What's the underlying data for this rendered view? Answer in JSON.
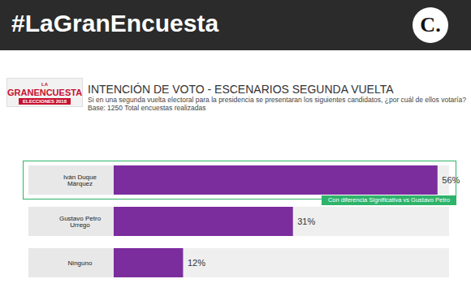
{
  "header": {
    "hashtag": "#LaGranEncuesta",
    "logo": "C."
  },
  "badge": [
    "LA",
    "GRANENCUESTA",
    "ELECCIONES 2018"
  ],
  "chart_data": {
    "type": "bar",
    "orientation": "horizontal",
    "title": "INTENCIÓN DE VOTO  - ESCENARIOS SEGUNDA VUELTA",
    "subtitle": "Si en una segunda vuelta electoral para la presidencia se presentaran los siguientes candidatos, ¿por cuál de ellos votaría?",
    "base": "Base: 1250 Total encuestas realizadas",
    "categories": [
      "Iván Duque Márquez",
      "Gustavo Petro Urrego",
      "Ninguno"
    ],
    "values": [
      56,
      31,
      12
    ],
    "value_labels": [
      "56%",
      "31%",
      "12%"
    ],
    "color": "#7b2d9e",
    "xlim": [
      0,
      58
    ],
    "data_labels": true,
    "tick_labels": "y",
    "annotations": [
      {
        "category": "Iván Duque Márquez",
        "text": "Con diferencia Significativa vs Gustavo Petro"
      }
    ]
  }
}
